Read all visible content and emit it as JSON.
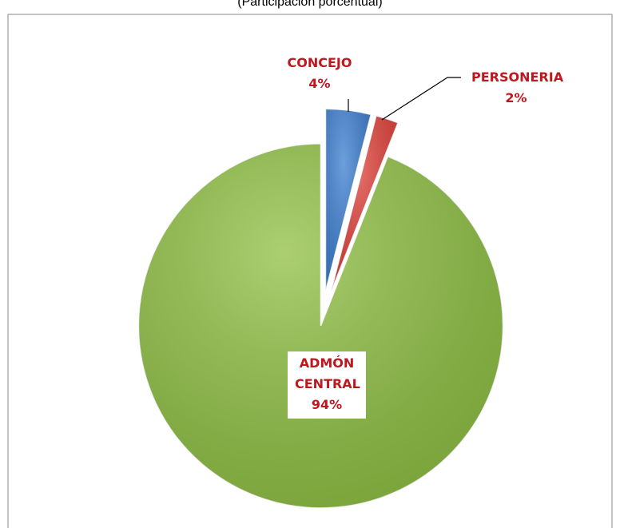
{
  "chart_data": {
    "type": "pie",
    "title": "(Participación porcentual)",
    "categories": [
      "CONCEJO",
      "PERSONERIA",
      "ADMÓN CENTRAL"
    ],
    "values": [
      4,
      2,
      94
    ],
    "value_labels": [
      "4%",
      "2%",
      "94%"
    ],
    "colors": [
      "#3d7fd1",
      "#e0413a",
      "#8fc043"
    ]
  }
}
